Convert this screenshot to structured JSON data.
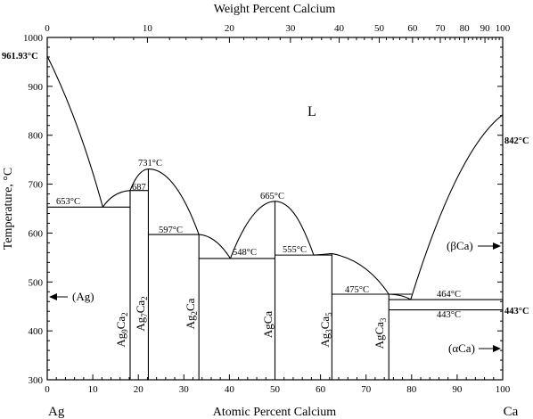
{
  "top_axis": {
    "title": "Weight Percent Calcium",
    "ticks": [
      {
        "label": "0",
        "at_pct": 0
      },
      {
        "label": "10",
        "at_pct": 22.0
      },
      {
        "label": "20",
        "at_pct": 40.0
      },
      {
        "label": "30",
        "at_pct": 53.4
      },
      {
        "label": "40",
        "at_pct": 64.1
      },
      {
        "label": "50",
        "at_pct": 72.9
      },
      {
        "label": "60",
        "at_pct": 80.2
      },
      {
        "label": "70",
        "at_pct": 86.3
      },
      {
        "label": "80",
        "at_pct": 91.6
      },
      {
        "label": "90",
        "at_pct": 96.1
      },
      {
        "label": "100",
        "at_pct": 100
      }
    ]
  },
  "bottom_axis": {
    "title": "Atomic Percent Calcium",
    "ticks": [
      "0",
      "10",
      "20",
      "30",
      "40",
      "50",
      "60",
      "70",
      "80",
      "90",
      "100"
    ]
  },
  "left_axis": {
    "title": "Temperature, °C",
    "ticks": [
      "300",
      "400",
      "500",
      "600",
      "700",
      "800",
      "900",
      "1000"
    ]
  },
  "elements": {
    "left": "Ag",
    "right": "Ca"
  },
  "regions": {
    "liquid": "L"
  },
  "special_points": {
    "ag_melting": "961.93°C",
    "ca_melting": "842°C",
    "ca_transition": "443°C"
  },
  "temperature_labels": {
    "t653": "653°C",
    "t731": "731°C",
    "t687": "687",
    "t597": "597°C",
    "t665": "665°C",
    "t548": "548°C",
    "t555": "555°C",
    "t475": "475°C",
    "t464": "464°C",
    "t443": "443°C"
  },
  "phases": {
    "ag_solid": "(Ag)",
    "beta_ca": "(βCa)",
    "alpha_ca": "(αCa)",
    "ag9ca2": {
      "base1": "Ag",
      "sub1": "9",
      "base2": "Ca",
      "sub2": "2"
    },
    "ag7ca2": {
      "base1": "Ag",
      "sub1": "7",
      "base2": "Ca",
      "sub2": "2"
    },
    "ag2ca": {
      "base1": "Ag",
      "sub1": "2",
      "base2": "Ca",
      "sub2": ""
    },
    "agca": {
      "base1": "AgCa",
      "sub1": "",
      "base2": "",
      "sub2": ""
    },
    "ag3ca5": {
      "base1": "Ag",
      "sub1": "3",
      "base2": "Ca",
      "sub2": "5"
    },
    "agca3": {
      "base1": "AgCa",
      "sub1": "3",
      "base2": "",
      "sub2": ""
    }
  }
}
